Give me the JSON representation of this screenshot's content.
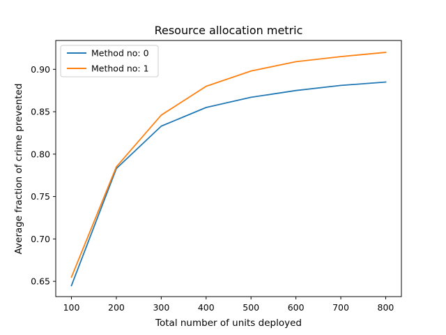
{
  "chart_data": {
    "type": "line",
    "title": "Resource allocation metric",
    "xlabel": "Total number of units deployed",
    "ylabel": "Average fraction of crime prevented",
    "x": [
      100,
      200,
      300,
      400,
      500,
      600,
      700,
      800
    ],
    "xticks": [
      100,
      200,
      300,
      400,
      500,
      600,
      700,
      800
    ],
    "yticks": [
      0.65,
      0.7,
      0.75,
      0.8,
      0.85,
      0.9
    ],
    "ytick_labels": [
      "0.65",
      "0.70",
      "0.75",
      "0.80",
      "0.85",
      "0.90"
    ],
    "xlim": [
      65,
      835
    ],
    "ylim": [
      0.632,
      0.934
    ],
    "grid": false,
    "legend_position": "upper-left",
    "series": [
      {
        "name": "Method no: 0",
        "color": "#1f77b4",
        "values": [
          0.645,
          0.783,
          0.833,
          0.855,
          0.867,
          0.875,
          0.881,
          0.885
        ]
      },
      {
        "name": "Method no: 1",
        "color": "#ff7f0e",
        "values": [
          0.655,
          0.785,
          0.846,
          0.88,
          0.898,
          0.909,
          0.915,
          0.92
        ]
      }
    ]
  }
}
